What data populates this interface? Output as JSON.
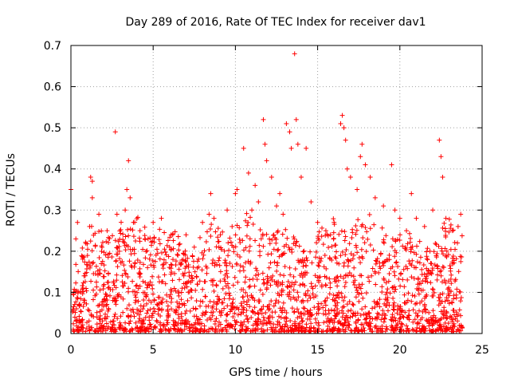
{
  "chart_data": {
    "type": "scatter",
    "title": "Day 289 of 2016, Rate Of TEC Index for receiver dav1",
    "xlabel": "GPS time / hours",
    "ylabel": "ROTI / TECUs",
    "xlim": [
      0,
      25
    ],
    "ylim": [
      0,
      0.7
    ],
    "x_ticks": [
      0,
      5,
      10,
      15,
      20,
      25
    ],
    "y_ticks": [
      0,
      0.1,
      0.2,
      0.3,
      0.4,
      0.5,
      0.6,
      0.7
    ],
    "x_tick_labels": [
      "0",
      "5",
      "10",
      "15",
      "20",
      "25"
    ],
    "y_tick_labels": [
      "0",
      "0.1",
      "0.2",
      "0.3",
      "0.4",
      "0.5",
      "0.6",
      "0.7"
    ],
    "grid": true,
    "marker": "+",
    "series": [
      {
        "name": "dav1",
        "color": "#ff0000",
        "points": [
          [
            0.0,
            0.35
          ],
          [
            0.3,
            0.23
          ],
          [
            0.4,
            0.27
          ],
          [
            0.8,
            0.14
          ],
          [
            1.2,
            0.38
          ],
          [
            1.3,
            0.37
          ],
          [
            1.3,
            0.33
          ],
          [
            1.7,
            0.29
          ],
          [
            2.2,
            0.25
          ],
          [
            2.7,
            0.49
          ],
          [
            2.8,
            0.29
          ],
          [
            3.3,
            0.3
          ],
          [
            3.4,
            0.35
          ],
          [
            3.5,
            0.42
          ],
          [
            3.6,
            0.33
          ],
          [
            3.8,
            0.27
          ],
          [
            4.2,
            0.25
          ],
          [
            4.5,
            0.23
          ],
          [
            5.0,
            0.27
          ],
          [
            5.5,
            0.28
          ],
          [
            6.0,
            0.21
          ],
          [
            6.5,
            0.19
          ],
          [
            7.0,
            0.24
          ],
          [
            7.5,
            0.21
          ],
          [
            8.0,
            0.27
          ],
          [
            8.4,
            0.29
          ],
          [
            8.5,
            0.34
          ],
          [
            8.7,
            0.28
          ],
          [
            9.0,
            0.21
          ],
          [
            9.5,
            0.3
          ],
          [
            9.8,
            0.26
          ],
          [
            10.0,
            0.34
          ],
          [
            10.1,
            0.35
          ],
          [
            10.5,
            0.45
          ],
          [
            10.8,
            0.39
          ],
          [
            11.0,
            0.3
          ],
          [
            11.2,
            0.36
          ],
          [
            11.4,
            0.32
          ],
          [
            11.7,
            0.52
          ],
          [
            11.8,
            0.46
          ],
          [
            11.9,
            0.42
          ],
          [
            12.2,
            0.38
          ],
          [
            12.5,
            0.31
          ],
          [
            12.7,
            0.34
          ],
          [
            12.9,
            0.29
          ],
          [
            13.1,
            0.51
          ],
          [
            13.3,
            0.49
          ],
          [
            13.4,
            0.45
          ],
          [
            13.6,
            0.68
          ],
          [
            13.7,
            0.52
          ],
          [
            13.8,
            0.46
          ],
          [
            14.0,
            0.38
          ],
          [
            14.3,
            0.45
          ],
          [
            14.6,
            0.32
          ],
          [
            15.0,
            0.27
          ],
          [
            15.5,
            0.25
          ],
          [
            16.0,
            0.27
          ],
          [
            16.4,
            0.51
          ],
          [
            16.5,
            0.53
          ],
          [
            16.6,
            0.5
          ],
          [
            16.7,
            0.47
          ],
          [
            16.8,
            0.4
          ],
          [
            17.0,
            0.38
          ],
          [
            17.4,
            0.35
          ],
          [
            17.6,
            0.43
          ],
          [
            17.7,
            0.46
          ],
          [
            17.9,
            0.41
          ],
          [
            18.2,
            0.38
          ],
          [
            18.5,
            0.33
          ],
          [
            19.0,
            0.31
          ],
          [
            19.5,
            0.41
          ],
          [
            19.7,
            0.3
          ],
          [
            20.0,
            0.28
          ],
          [
            20.4,
            0.25
          ],
          [
            20.7,
            0.34
          ],
          [
            21.0,
            0.28
          ],
          [
            21.5,
            0.26
          ],
          [
            22.0,
            0.3
          ],
          [
            22.4,
            0.47
          ],
          [
            22.5,
            0.43
          ],
          [
            22.6,
            0.38
          ],
          [
            22.8,
            0.28
          ],
          [
            23.2,
            0.25
          ],
          [
            23.5,
            0.22
          ],
          [
            23.7,
            0.29
          ]
        ]
      }
    ]
  },
  "style": {
    "marker_color": "#ff0000",
    "grid_color": "#a0a0a0"
  }
}
